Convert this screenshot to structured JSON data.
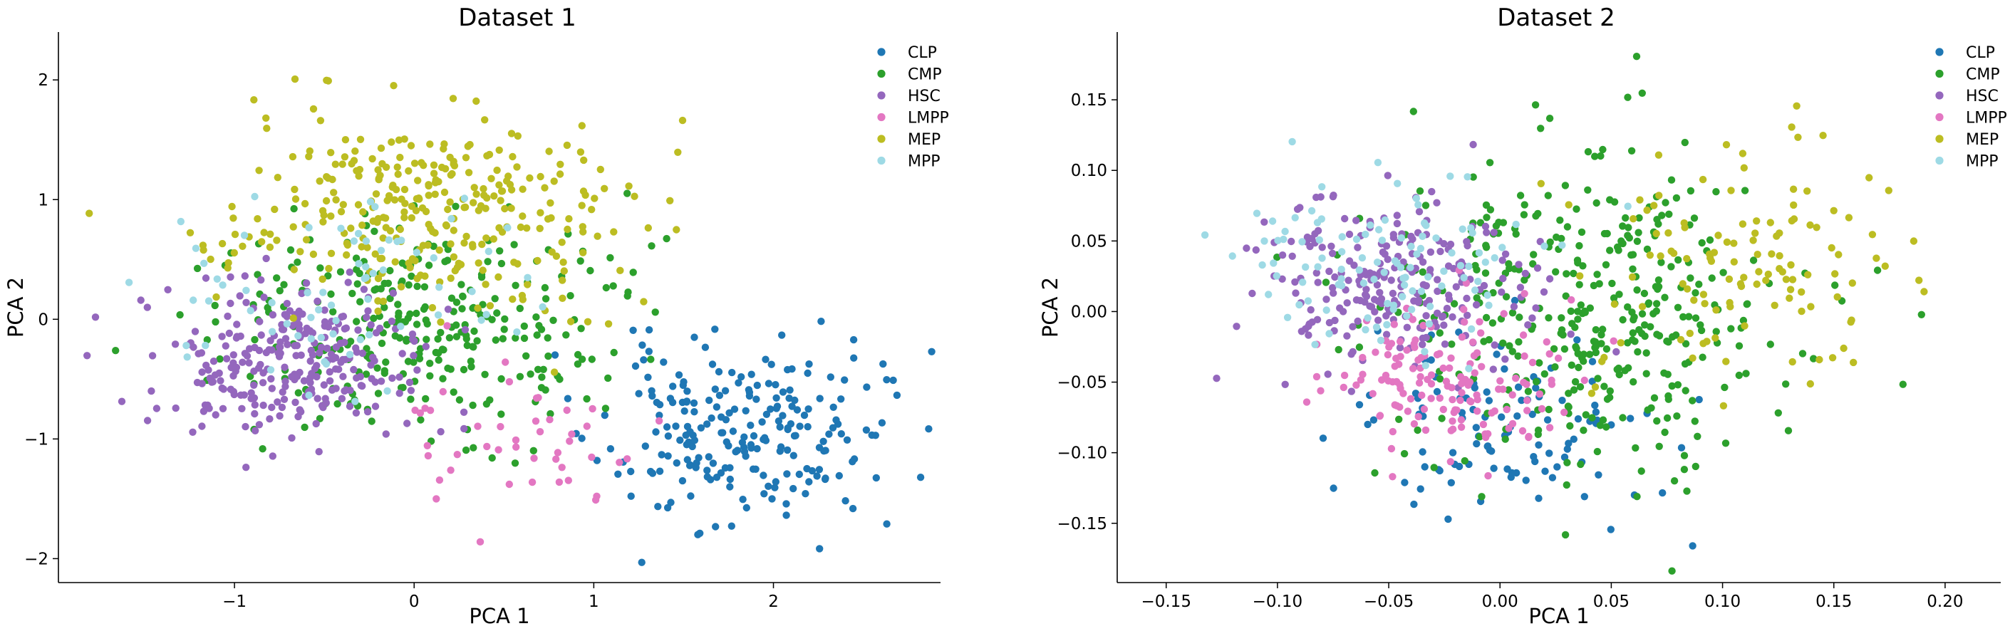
{
  "chart_data": [
    {
      "type": "scatter",
      "title": "Dataset 1",
      "xlabel": "PCA 1",
      "ylabel": "PCA 2",
      "xlim": [
        -1.98,
        2.93
      ],
      "ylim": [
        -2.2,
        2.4
      ],
      "xticks": [
        -1,
        0,
        1,
        2
      ],
      "xtick_labels": [
        "−1",
        "0",
        "1",
        "2"
      ],
      "yticks": [
        -2,
        -1,
        0,
        1,
        2
      ],
      "ytick_labels": [
        "−2",
        "−1",
        "0",
        "1",
        "2"
      ],
      "grid": false,
      "legend": "top-right",
      "series": [
        {
          "name": "CLP",
          "color": "#1f77b4",
          "cx": 1.8,
          "cy": -0.95,
          "sx": 0.38,
          "sy": 0.38,
          "n": 230,
          "seed": 11
        },
        {
          "name": "CMP",
          "color": "#2ca02c",
          "cx": 0.05,
          "cy": -0.05,
          "sx": 0.55,
          "sy": 0.42,
          "n": 300,
          "seed": 12
        },
        {
          "name": "HSC",
          "color": "#9467bd",
          "cx": -0.75,
          "cy": -0.35,
          "sx": 0.4,
          "sy": 0.32,
          "n": 280,
          "seed": 13
        },
        {
          "name": "LMPP",
          "color": "#e377c2",
          "cx": 0.6,
          "cy": -1.05,
          "sx": 0.35,
          "sy": 0.3,
          "n": 45,
          "seed": 14
        },
        {
          "name": "MEP",
          "color": "#bcbd22",
          "cx": 0.1,
          "cy": 0.95,
          "sx": 0.55,
          "sy": 0.42,
          "n": 320,
          "seed": 15
        },
        {
          "name": "MPP",
          "color": "#9edae5",
          "cx": -0.4,
          "cy": 0.2,
          "sx": 0.55,
          "sy": 0.45,
          "n": 70,
          "seed": 16
        }
      ]
    },
    {
      "type": "scatter",
      "title": "Dataset 2",
      "xlabel": "PCA 1",
      "ylabel": "PCA 2",
      "xlim": [
        -0.172,
        0.225
      ],
      "ylim": [
        -0.192,
        0.198
      ],
      "xticks": [
        -0.15,
        -0.1,
        -0.05,
        0.0,
        0.05,
        0.1,
        0.15,
        0.2
      ],
      "xtick_labels": [
        "−0.15",
        "−0.10",
        "−0.05",
        "0.00",
        "0.05",
        "0.10",
        "0.15",
        "0.20"
      ],
      "yticks": [
        -0.15,
        -0.1,
        -0.05,
        0.0,
        0.05,
        0.1,
        0.15
      ],
      "ytick_labels": [
        "−0.15",
        "−0.10",
        "−0.05",
        "0.00",
        "0.05",
        "0.10",
        "0.15"
      ],
      "grid": false,
      "legend": "top-right",
      "series": [
        {
          "name": "CLP",
          "color": "#1f77b4",
          "cx": 0.0,
          "cy": -0.08,
          "sx": 0.035,
          "sy": 0.035,
          "n": 110,
          "seed": 21
        },
        {
          "name": "CMP",
          "color": "#2ca02c",
          "cx": 0.04,
          "cy": 0.0,
          "sx": 0.045,
          "sy": 0.055,
          "n": 380,
          "seed": 22
        },
        {
          "name": "HSC",
          "color": "#9467bd",
          "cx": -0.05,
          "cy": 0.02,
          "sx": 0.03,
          "sy": 0.03,
          "n": 240,
          "seed": 23
        },
        {
          "name": "LMPP",
          "color": "#e377c2",
          "cx": -0.03,
          "cy": -0.05,
          "sx": 0.028,
          "sy": 0.025,
          "n": 150,
          "seed": 24
        },
        {
          "name": "MEP",
          "color": "#bcbd22",
          "cx": 0.11,
          "cy": 0.03,
          "sx": 0.035,
          "sy": 0.045,
          "n": 120,
          "seed": 25
        },
        {
          "name": "MPP",
          "color": "#9edae5",
          "cx": -0.05,
          "cy": 0.03,
          "sx": 0.035,
          "sy": 0.03,
          "n": 110,
          "seed": 26
        }
      ]
    }
  ]
}
